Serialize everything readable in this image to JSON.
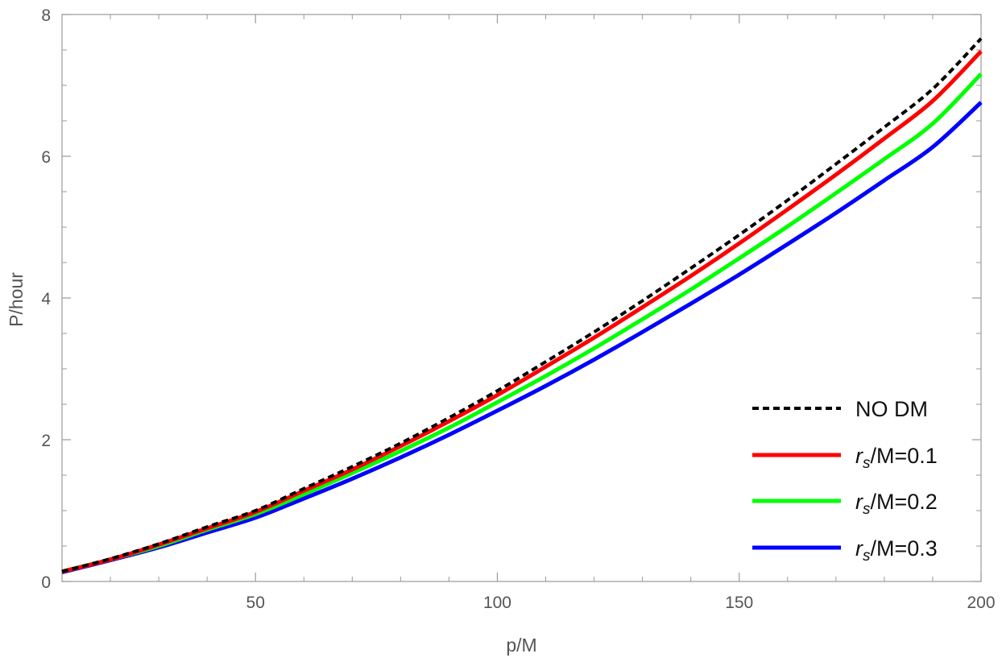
{
  "chart_data": {
    "type": "line",
    "title": "",
    "xlabel": "p/M",
    "ylabel": "P/hour",
    "xlim": [
      10,
      200
    ],
    "ylim": [
      0,
      8
    ],
    "x_ticks": [
      50,
      100,
      150,
      200
    ],
    "y_ticks": [
      0,
      2,
      4,
      6,
      8
    ],
    "grid": false,
    "legend": {
      "position": "bottom-right"
    },
    "x": [
      10,
      20,
      30,
      40,
      50,
      60,
      70,
      80,
      90,
      100,
      110,
      120,
      130,
      140,
      150,
      160,
      170,
      180,
      190,
      200
    ],
    "series": [
      {
        "name": "NO DM",
        "legend_parts": [
          {
            "t": "NO DM",
            "i": false
          }
        ],
        "color": "#000000",
        "dash": true,
        "values": [
          0.14,
          0.32,
          0.53,
          0.77,
          1.0,
          1.31,
          1.62,
          1.95,
          2.31,
          2.69,
          3.1,
          3.52,
          3.96,
          4.42,
          4.89,
          5.38,
          5.89,
          6.41,
          6.95,
          7.66
        ]
      },
      {
        "name": "r_s/M=0.1",
        "legend_parts": [
          {
            "t": "r",
            "i": true
          },
          {
            "t": "s",
            "i": true,
            "sub": true
          },
          {
            "t": "/M=0.1",
            "i": false
          }
        ],
        "color": "#ff0000",
        "dash": false,
        "values": [
          0.14,
          0.31,
          0.52,
          0.75,
          0.98,
          1.28,
          1.58,
          1.91,
          2.26,
          2.63,
          3.03,
          3.44,
          3.87,
          4.31,
          4.77,
          5.25,
          5.74,
          6.25,
          6.78,
          7.48
        ]
      },
      {
        "name": "r_s/M=0.2",
        "legend_parts": [
          {
            "t": "r",
            "i": true
          },
          {
            "t": "s",
            "i": true,
            "sub": true
          },
          {
            "t": "/M=0.2",
            "i": false
          }
        ],
        "color": "#00ff00",
        "dash": false,
        "values": [
          0.14,
          0.31,
          0.5,
          0.73,
          0.95,
          1.23,
          1.53,
          1.84,
          2.17,
          2.53,
          2.9,
          3.29,
          3.7,
          4.12,
          4.56,
          5.01,
          5.48,
          5.96,
          6.46,
          7.16
        ]
      },
      {
        "name": "r_s/M=0.3",
        "legend_parts": [
          {
            "t": "r",
            "i": true
          },
          {
            "t": "s",
            "i": true,
            "sub": true
          },
          {
            "t": "/M=0.3",
            "i": false
          }
        ],
        "color": "#0000ff",
        "dash": false,
        "values": [
          0.13,
          0.3,
          0.48,
          0.69,
          0.9,
          1.17,
          1.45,
          1.75,
          2.07,
          2.41,
          2.76,
          3.13,
          3.52,
          3.92,
          4.33,
          4.76,
          5.2,
          5.66,
          6.13,
          6.76
        ]
      }
    ]
  }
}
